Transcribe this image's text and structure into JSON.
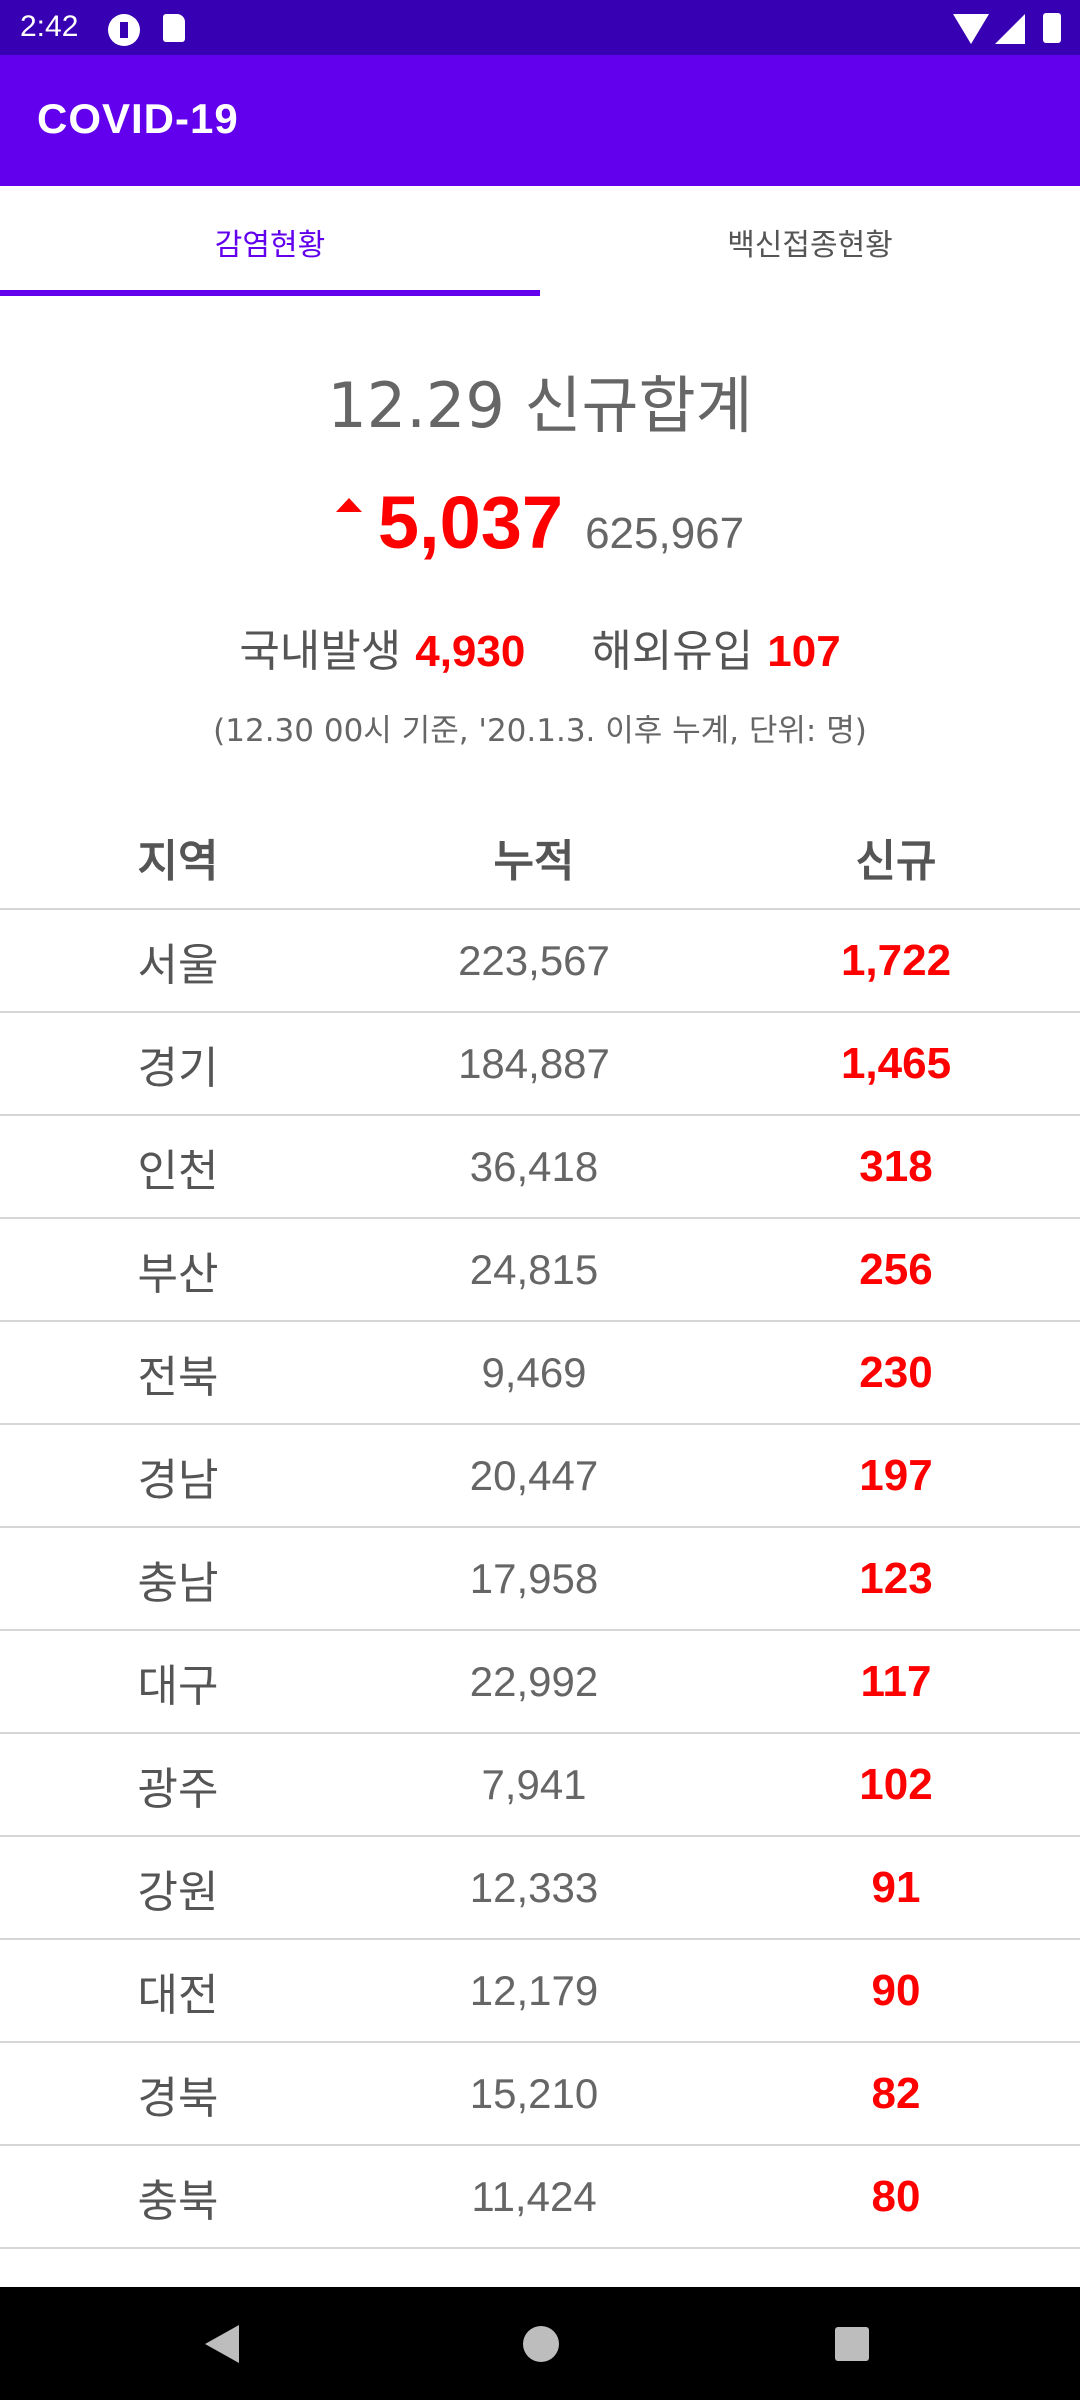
{
  "status_bar": {
    "time": "2:42"
  },
  "app_bar": {
    "title": "COVID-19"
  },
  "tabs": [
    {
      "label": "감염현황",
      "active": true
    },
    {
      "label": "백신접종현황",
      "active": false
    }
  ],
  "summary": {
    "title": "12.29 신규합계",
    "new_total": "5,037",
    "cumulative_total": "625,967",
    "domestic_label": "국내발생",
    "domestic_value": "4,930",
    "overseas_label": "해외유입",
    "overseas_value": "107",
    "note": "(12.30 00시 기준, '20.1.3. 이후 누계, 단위: 명)"
  },
  "table": {
    "headers": {
      "region": "지역",
      "cumulative": "누적",
      "new": "신규"
    },
    "rows": [
      {
        "region": "서울",
        "cumulative": "223,567",
        "new": "1,722"
      },
      {
        "region": "경기",
        "cumulative": "184,887",
        "new": "1,465"
      },
      {
        "region": "인천",
        "cumulative": "36,418",
        "new": "318"
      },
      {
        "region": "부산",
        "cumulative": "24,815",
        "new": "256"
      },
      {
        "region": "전북",
        "cumulative": "9,469",
        "new": "230"
      },
      {
        "region": "경남",
        "cumulative": "20,447",
        "new": "197"
      },
      {
        "region": "충남",
        "cumulative": "17,958",
        "new": "123"
      },
      {
        "region": "대구",
        "cumulative": "22,992",
        "new": "117"
      },
      {
        "region": "광주",
        "cumulative": "7,941",
        "new": "102"
      },
      {
        "region": "강원",
        "cumulative": "12,333",
        "new": "91"
      },
      {
        "region": "대전",
        "cumulative": "12,179",
        "new": "90"
      },
      {
        "region": "경북",
        "cumulative": "15,210",
        "new": "82"
      },
      {
        "region": "충북",
        "cumulative": "11,424",
        "new": "80"
      }
    ]
  },
  "colors": {
    "primary": "#6200ee",
    "primary_dark": "#3700b3",
    "increase": "#ff0000"
  }
}
